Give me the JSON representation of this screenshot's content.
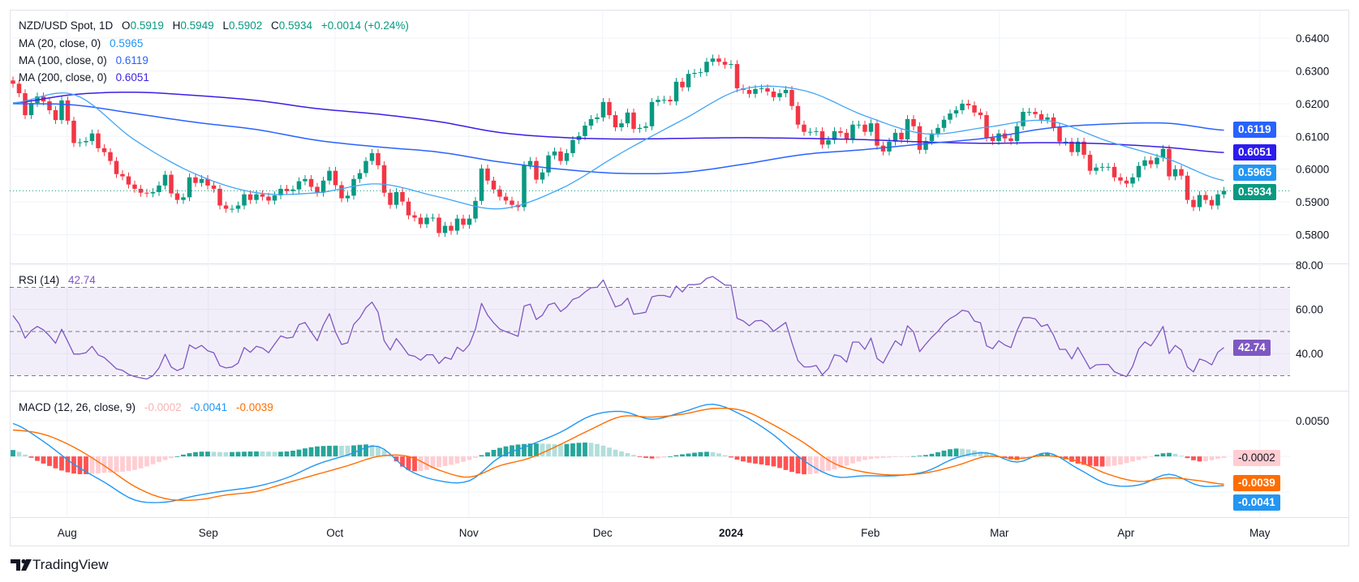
{
  "symbol": {
    "title": "NZD/USD Spot, 1D",
    "o_label": "O",
    "open": "0.5919",
    "h_label": "H",
    "high": "0.5949",
    "l_label": "L",
    "low": "0.5902",
    "c_label": "C",
    "close": "0.5934",
    "change": "+0.0014 (+0.24%)"
  },
  "indicators": {
    "ma20": {
      "label": "MA (20, close, 0)",
      "value": "0.5965",
      "color": "#2196f3"
    },
    "ma100": {
      "label": "MA (100, close, 0)",
      "value": "0.6119",
      "color": "#2962ff"
    },
    "ma200": {
      "label": "MA (200, close, 0)",
      "value": "0.6051",
      "color": "#3a1ee6"
    }
  },
  "rsi": {
    "label": "RSI (14)",
    "value": "42.74",
    "color": "#7e57c2"
  },
  "macd": {
    "label": "MACD (12, 26, close, 9)",
    "hist": "-0.0002",
    "macd": "-0.0041",
    "signal": "-0.0039",
    "hist_color": "#ffcdd2",
    "macd_color": "#2196f3",
    "signal_color": "#ff6d00"
  },
  "price_axis": [
    "0.6400",
    "0.6300",
    "0.6200",
    "0.6100",
    "0.6000",
    "0.5900",
    "0.5800"
  ],
  "price_badges": {
    "ma100": "0.6119",
    "ma200": "0.6051",
    "ma20": "0.5965",
    "last": "0.5934"
  },
  "rsi_axis": [
    "80.00",
    "60.00",
    "40.00"
  ],
  "rsi_badge": "42.74",
  "macd_axis": [
    "0.0050"
  ],
  "macd_badges": {
    "hist": "-0.0002",
    "signal": "-0.0039",
    "macd": "-0.0041"
  },
  "time_axis": [
    "Aug",
    "Sep",
    "Oct",
    "Nov",
    "Dec",
    "2024",
    "Feb",
    "Mar",
    "Apr",
    "May"
  ],
  "brand": "TradingView",
  "colors": {
    "up": "#089981",
    "down": "#f23645",
    "hist_up_strong": "#26a69a",
    "hist_up_weak": "#b2dfdb",
    "hist_down_strong": "#ff5252",
    "hist_down_weak": "#ffcdd2",
    "grid": "#f0f3fa",
    "border": "#e0e3eb"
  },
  "chart_data": {
    "type": "candlestick",
    "symbol": "NZD/USD Spot, 1D",
    "price_range": [
      0.5712,
      0.6487
    ],
    "rsi_range": [
      23.2,
      80.8
    ],
    "rsi_levels": [
      70,
      50,
      30
    ],
    "macd_range": [
      -0.0085,
      0.0092
    ],
    "first_open": 0.6271,
    "closes": [
      0.6261,
      0.6232,
      0.6165,
      0.6202,
      0.6222,
      0.6207,
      0.618,
      0.615,
      0.621,
      0.6148,
      0.608,
      0.6082,
      0.6086,
      0.6109,
      0.6064,
      0.6052,
      0.6025,
      0.5985,
      0.5978,
      0.5953,
      0.594,
      0.5928,
      0.5926,
      0.593,
      0.595,
      0.5983,
      0.5926,
      0.5906,
      0.5914,
      0.5975,
      0.5958,
      0.597,
      0.595,
      0.594,
      0.5889,
      0.5879,
      0.5879,
      0.5889,
      0.5923,
      0.5906,
      0.5923,
      0.5916,
      0.5904,
      0.592,
      0.594,
      0.5933,
      0.5938,
      0.5963,
      0.597,
      0.5946,
      0.5928,
      0.5965,
      0.5995,
      0.5951,
      0.5911,
      0.5919,
      0.597,
      0.5988,
      0.6025,
      0.6049,
      0.6012,
      0.5928,
      0.5891,
      0.593,
      0.5901,
      0.5859,
      0.5852,
      0.5832,
      0.5852,
      0.5852,
      0.5805,
      0.5827,
      0.5812,
      0.5849,
      0.583,
      0.5849,
      0.5903,
      0.6002,
      0.5965,
      0.5938,
      0.5916,
      0.5904,
      0.5891,
      0.5884,
      0.6012,
      0.6025,
      0.5968,
      0.599,
      0.6042,
      0.6054,
      0.6025,
      0.6049,
      0.6089,
      0.6101,
      0.6133,
      0.6153,
      0.6158,
      0.6205,
      0.6165,
      0.6128,
      0.614,
      0.6173,
      0.6123,
      0.6126,
      0.6131,
      0.6205,
      0.6212,
      0.6212,
      0.6207,
      0.6267,
      0.625,
      0.6291,
      0.6294,
      0.6296,
      0.6328,
      0.6338,
      0.6328,
      0.6319,
      0.6321,
      0.6247,
      0.6242,
      0.623,
      0.6245,
      0.6247,
      0.6237,
      0.622,
      0.6232,
      0.6242,
      0.6193,
      0.6136,
      0.6114,
      0.6114,
      0.6116,
      0.6075,
      0.6089,
      0.6116,
      0.6111,
      0.6091,
      0.6136,
      0.6136,
      0.6114,
      0.614,
      0.6072,
      0.6054,
      0.6084,
      0.6111,
      0.6091,
      0.6153,
      0.6131,
      0.6059,
      0.6086,
      0.6109,
      0.6126,
      0.6151,
      0.617,
      0.618,
      0.62,
      0.6195,
      0.6173,
      0.6165,
      0.6096,
      0.6086,
      0.6109,
      0.6094,
      0.6086,
      0.6131,
      0.6175,
      0.6175,
      0.6168,
      0.6151,
      0.6158,
      0.6128,
      0.6084,
      0.6084,
      0.6052,
      0.6084,
      0.6044,
      0.5995,
      0.6005,
      0.6007,
      0.6007,
      0.5975,
      0.5965,
      0.5956,
      0.5975,
      0.601,
      0.6027,
      0.6015,
      0.6035,
      0.6062,
      0.5978,
      0.6,
      0.598,
      0.5906,
      0.5884,
      0.5921,
      0.5906,
      0.5889,
      0.5923,
      0.5934
    ],
    "ma20": [
      0.6202,
      0.6228,
      0.6089,
      0.5985,
      0.5928,
      0.5928,
      0.5955,
      0.5915,
      0.5879,
      0.594,
      0.605,
      0.615,
      0.6245,
      0.624,
      0.6163,
      0.6108,
      0.6128,
      0.6148,
      0.6085,
      0.603,
      0.5965
    ],
    "ma100": [
      0.62,
      0.6196,
      0.617,
      0.6143,
      0.6121,
      0.6088,
      0.6068,
      0.6052,
      0.6022,
      0.6,
      0.5987,
      0.599,
      0.6015,
      0.6045,
      0.606,
      0.6078,
      0.6095,
      0.6125,
      0.6138,
      0.614,
      0.6119
    ],
    "ma200": [
      0.6202,
      0.6228,
      0.6235,
      0.6225,
      0.621,
      0.6185,
      0.6168,
      0.6145,
      0.6112,
      0.6097,
      0.6092,
      0.6094,
      0.6096,
      0.6094,
      0.609,
      0.6083,
      0.6079,
      0.6081,
      0.6077,
      0.6066,
      0.6051
    ],
    "rsi": [
      57.2,
      53.5,
      47.0,
      50.4,
      52.3,
      50.7,
      48.0,
      44.7,
      51.0,
      45.5,
      39.8,
      39.8,
      40.4,
      43.3,
      39.4,
      38.2,
      35.7,
      33.1,
      32.4,
      30.6,
      29.6,
      29.0,
      28.5,
      30.0,
      33.5,
      39.7,
      33.9,
      32.3,
      33.5,
      43.9,
      42.2,
      43.7,
      41.3,
      40.4,
      34.5,
      33.5,
      33.9,
      35.7,
      42.7,
      40.6,
      43.3,
      42.5,
      40.4,
      44.3,
      48.0,
      47.0,
      47.4,
      53.1,
      54.1,
      49.8,
      45.8,
      52.9,
      58.0,
      49.8,
      44.1,
      44.9,
      53.2,
      56.2,
      60.8,
      63.3,
      58.7,
      45.8,
      41.6,
      46.8,
      43.3,
      39.4,
      38.8,
      37.0,
      39.5,
      39.5,
      35.5,
      38.3,
      37.4,
      42.9,
      41.0,
      44.1,
      51.1,
      62.7,
      57.4,
      53.9,
      51.1,
      49.9,
      48.9,
      47.8,
      61.5,
      62.4,
      55.4,
      57.4,
      62.1,
      62.9,
      59.0,
      61.1,
      64.5,
      65.5,
      67.8,
      69.8,
      70.0,
      73.3,
      67.2,
      61.1,
      62.1,
      65.1,
      57.8,
      58.2,
      58.7,
      65.7,
      66.3,
      66.3,
      65.5,
      70.6,
      67.9,
      71.2,
      71.2,
      71.6,
      74.0,
      74.9,
      73.0,
      71.0,
      70.9,
      56.0,
      54.8,
      52.6,
      54.8,
      55.0,
      53.2,
      50.1,
      52.1,
      54.1,
      45.0,
      36.8,
      34.0,
      34.0,
      34.6,
      30.4,
      33.2,
      39.5,
      38.8,
      36.1,
      45.2,
      45.2,
      41.9,
      47.0,
      37.8,
      35.7,
      40.9,
      45.8,
      43.7,
      52.6,
      49.8,
      40.9,
      44.3,
      47.4,
      50.1,
      53.5,
      55.9,
      57.4,
      59.6,
      59.0,
      54.7,
      53.9,
      43.5,
      42.2,
      45.8,
      43.9,
      42.7,
      50.4,
      56.3,
      56.3,
      55.7,
      52.3,
      53.2,
      48.3,
      41.9,
      41.9,
      37.6,
      42.8,
      38.0,
      33.1,
      34.9,
      35.1,
      35.1,
      31.8,
      30.6,
      29.6,
      34.2,
      42.1,
      45.3,
      43.5,
      47.6,
      52.3,
      40.0,
      43.7,
      41.6,
      33.9,
      31.7,
      37.6,
      36.6,
      34.9,
      40.6,
      42.74
    ],
    "macd": [
      0.0046,
      0.0021,
      -0.0011,
      -0.0036,
      -0.0061,
      -0.0064,
      -0.0055,
      -0.0048,
      -0.0042,
      -0.003,
      -0.0011,
      0.0002,
      0.0014,
      -0.0019,
      -0.0034,
      -0.0034,
      -0.0001,
      0.0016,
      0.0034,
      0.0057,
      0.0063,
      0.0052,
      0.0062,
      0.0073,
      0.0057,
      0.003,
      -0.0006,
      -0.0028,
      -0.0027,
      -0.0027,
      -0.0021,
      -0.0002,
      0.0005,
      -0.0008,
      0.0005,
      -0.0017,
      -0.0039,
      -0.004,
      -0.0025,
      -0.0041,
      -0.0041
    ],
    "signal": [
      0.0037,
      0.0031,
      0.0013,
      -0.0013,
      -0.0042,
      -0.0059,
      -0.0061,
      -0.0054,
      -0.0049,
      -0.0037,
      -0.0025,
      -0.0013,
      0.0,
      0.0,
      -0.0019,
      -0.0029,
      -0.0013,
      -0.0002,
      0.0017,
      0.0038,
      0.0056,
      0.0055,
      0.0059,
      0.0067,
      0.0064,
      0.0044,
      0.0019,
      -0.001,
      -0.0022,
      -0.0026,
      -0.0023,
      -0.0013,
      0.0,
      -0.0003,
      0.0001,
      -0.0007,
      -0.0025,
      -0.0035,
      -0.003,
      -0.0034,
      -0.0039
    ]
  }
}
